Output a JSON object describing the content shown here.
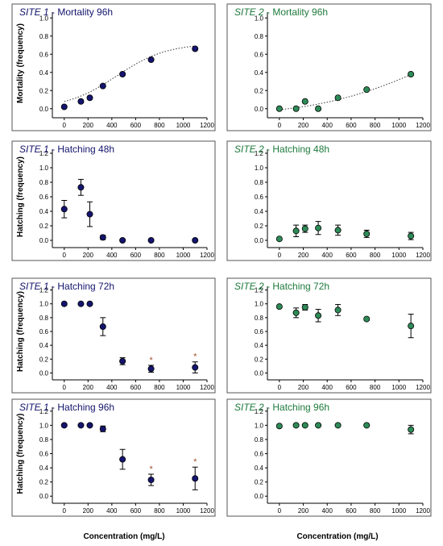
{
  "colors": {
    "site1": "#14146e",
    "site2": "#1e7a3c",
    "site2_fill": "#2e8b57",
    "star": "#a0522d"
  },
  "xlabel": "Concentration (mg/L)",
  "chart_data": [
    {
      "type": "scatter",
      "title_site": "SITE 1",
      "title_rest": " - Mortality 96h",
      "ylabel": "Mortality (frequency)",
      "color": "#14146e",
      "fill": "#14146e",
      "xlim": [
        -100,
        1200
      ],
      "ylim": [
        -0.1,
        1.1
      ],
      "xticks": [
        0,
        200,
        400,
        600,
        800,
        1000,
        1200
      ],
      "yticks": [
        0.0,
        0.2,
        0.4,
        0.6,
        0.8,
        1.0
      ],
      "ytick_labels": [
        "0.0",
        "0.2",
        "0.4",
        "0.6",
        "0.8",
        "1.0"
      ],
      "x": [
        0,
        140,
        215,
        325,
        490,
        730,
        1100
      ],
      "y": [
        0.02,
        0.08,
        0.12,
        0.25,
        0.38,
        0.54,
        0.66
      ],
      "err": [
        0,
        0,
        0,
        0,
        0,
        0,
        0
      ],
      "stars": [],
      "fit": "sigmoid"
    },
    {
      "type": "scatter",
      "title_site": "SITE 2",
      "title_rest": " - Mortality 96h",
      "ylabel": "",
      "color": "#1e7a3c",
      "fill": "#2e8b57",
      "xlim": [
        -100,
        1200
      ],
      "ylim": [
        -0.1,
        1.1
      ],
      "xticks": [
        0,
        200,
        400,
        600,
        800,
        1000,
        1200
      ],
      "yticks": [
        0.0,
        0.2,
        0.4,
        0.6,
        0.8,
        1.0
      ],
      "ytick_labels": [
        "0.0",
        "0.2",
        "0.4",
        "0.6",
        "0.8",
        "1.0"
      ],
      "x": [
        0,
        140,
        215,
        325,
        490,
        730,
        1100
      ],
      "y": [
        0.0,
        0.0,
        0.08,
        0.0,
        0.12,
        0.21,
        0.38
      ],
      "err": [
        0,
        0,
        0,
        0,
        0,
        0,
        0
      ],
      "stars": [],
      "fit": "quad"
    },
    {
      "type": "scatter",
      "title_site": "SITE 1",
      "title_rest": " - Hatching 48h",
      "ylabel": "Hatching (frequency)",
      "color": "#14146e",
      "fill": "#14146e",
      "xlim": [
        -100,
        1200
      ],
      "ylim": [
        -0.1,
        1.3
      ],
      "xticks": [
        0,
        200,
        400,
        600,
        800,
        1000,
        1200
      ],
      "yticks": [
        0.0,
        0.2,
        0.4,
        0.6,
        0.8,
        1.0,
        1.2
      ],
      "ytick_labels": [
        "0.0",
        "0.2",
        "0.4",
        "0.6",
        "0.8",
        "1.0",
        "1.2"
      ],
      "x": [
        0,
        140,
        215,
        325,
        490,
        730,
        1100
      ],
      "y": [
        0.43,
        0.73,
        0.36,
        0.04,
        0.0,
        0.0,
        0.0
      ],
      "err": [
        0.12,
        0.11,
        0.17,
        0.03,
        0,
        0,
        0
      ],
      "stars": [],
      "fit": ""
    },
    {
      "type": "scatter",
      "title_site": "SITE 2",
      "title_rest": " - Hatching 48h",
      "ylabel": "",
      "color": "#1e7a3c",
      "fill": "#2e8b57",
      "xlim": [
        -100,
        1200
      ],
      "ylim": [
        -0.1,
        1.3
      ],
      "xticks": [
        0,
        200,
        400,
        600,
        800,
        1000,
        1200
      ],
      "yticks": [
        0.0,
        0.2,
        0.4,
        0.6,
        0.8,
        1.0,
        1.2
      ],
      "ytick_labels": [
        "0.0",
        "0.2",
        "0.4",
        "0.6",
        "0.8",
        "1.0",
        "1.2"
      ],
      "x": [
        0,
        140,
        215,
        325,
        490,
        730,
        1100
      ],
      "y": [
        0.02,
        0.13,
        0.16,
        0.17,
        0.14,
        0.09,
        0.06
      ],
      "err": [
        0.01,
        0.08,
        0.05,
        0.09,
        0.07,
        0.05,
        0.05
      ],
      "stars": [],
      "fit": ""
    },
    {
      "type": "scatter",
      "title_site": "SITE 1",
      "title_rest": " - Hatching 72h",
      "ylabel": "Hatching (frequency)",
      "color": "#14146e",
      "fill": "#14146e",
      "xlim": [
        -100,
        1200
      ],
      "ylim": [
        -0.1,
        1.3
      ],
      "xticks": [
        0,
        200,
        400,
        600,
        800,
        1000,
        1200
      ],
      "yticks": [
        0.0,
        0.2,
        0.4,
        0.6,
        0.8,
        1.0,
        1.2
      ],
      "ytick_labels": [
        "0.0",
        "0.2",
        "0.4",
        "0.6",
        "0.8",
        "1.0",
        "1.2"
      ],
      "x": [
        0,
        140,
        215,
        325,
        490,
        730,
        1100
      ],
      "y": [
        1.0,
        1.0,
        1.0,
        0.67,
        0.17,
        0.06,
        0.08
      ],
      "err": [
        0,
        0,
        0,
        0.13,
        0.05,
        0.05,
        0.08
      ],
      "stars": [
        5,
        6
      ],
      "fit": ""
    },
    {
      "type": "scatter",
      "title_site": "SITE 2",
      "title_rest": " - Hatching 72h",
      "ylabel": "",
      "color": "#1e7a3c",
      "fill": "#2e8b57",
      "xlim": [
        -100,
        1200
      ],
      "ylim": [
        -0.1,
        1.3
      ],
      "xticks": [
        0,
        200,
        400,
        600,
        800,
        1000,
        1200
      ],
      "yticks": [
        0.0,
        0.2,
        0.4,
        0.6,
        0.8,
        1.0,
        1.2
      ],
      "ytick_labels": [
        "0.0",
        "0.2",
        "0.4",
        "0.6",
        "0.8",
        "1.0",
        "1.2"
      ],
      "x": [
        0,
        140,
        215,
        325,
        490,
        730,
        1100
      ],
      "y": [
        0.96,
        0.87,
        0.95,
        0.83,
        0.91,
        0.78,
        0.68
      ],
      "err": [
        0.01,
        0.07,
        0.04,
        0.09,
        0.08,
        0.02,
        0.17
      ],
      "stars": [],
      "fit": ""
    },
    {
      "type": "scatter",
      "title_site": "SITE 1",
      "title_rest": " - Hatching 96h",
      "ylabel": "Hatching (frequency)",
      "color": "#14146e",
      "fill": "#14146e",
      "xlim": [
        -100,
        1200
      ],
      "ylim": [
        -0.1,
        1.3
      ],
      "xticks": [
        0,
        200,
        400,
        600,
        800,
        1000,
        1200
      ],
      "yticks": [
        0.0,
        0.2,
        0.4,
        0.6,
        0.8,
        1.0,
        1.2
      ],
      "ytick_labels": [
        "0.0",
        "0.2",
        "0.4",
        "0.6",
        "0.8",
        "1.0",
        "1.2"
      ],
      "x": [
        0,
        140,
        215,
        325,
        490,
        730,
        1100
      ],
      "y": [
        1.0,
        1.0,
        1.0,
        0.95,
        0.52,
        0.23,
        0.25
      ],
      "err": [
        0,
        0,
        0,
        0.04,
        0.14,
        0.08,
        0.16
      ],
      "stars": [
        5,
        6
      ],
      "fit": ""
    },
    {
      "type": "scatter",
      "title_site": "SITE 2",
      "title_rest": " - Hatching 96h",
      "ylabel": "",
      "color": "#1e7a3c",
      "fill": "#2e8b57",
      "xlim": [
        -100,
        1200
      ],
      "ylim": [
        -0.1,
        1.3
      ],
      "xticks": [
        0,
        200,
        400,
        600,
        800,
        1000,
        1200
      ],
      "yticks": [
        0.0,
        0.2,
        0.4,
        0.6,
        0.8,
        1.0,
        1.2
      ],
      "ytick_labels": [
        "0.0",
        "0.2",
        "0.4",
        "0.6",
        "0.8",
        "1.0",
        "1.2"
      ],
      "x": [
        0,
        140,
        215,
        325,
        490,
        730,
        1100
      ],
      "y": [
        0.99,
        1.0,
        1.0,
        1.0,
        1.0,
        1.0,
        0.94
      ],
      "err": [
        0,
        0,
        0,
        0,
        0,
        0,
        0.06
      ],
      "stars": [],
      "fit": ""
    }
  ]
}
